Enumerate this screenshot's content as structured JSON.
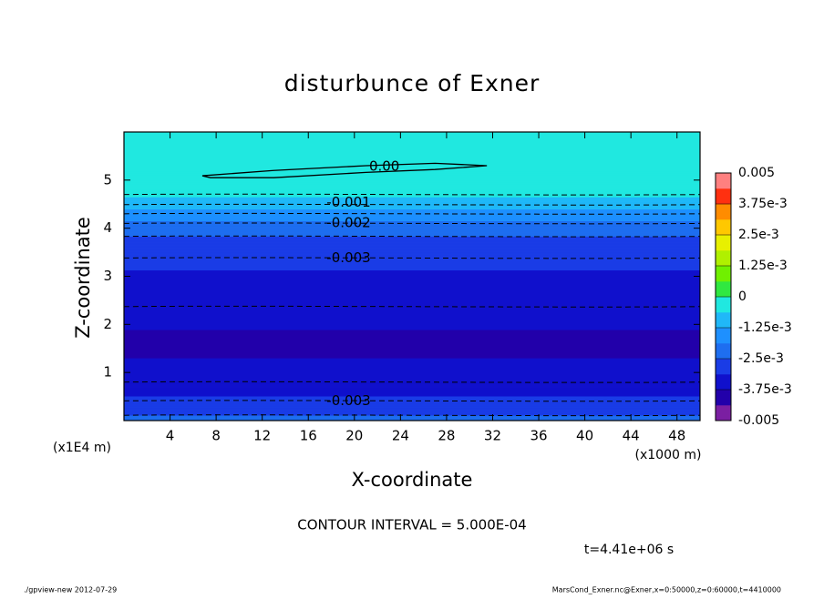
{
  "chart_data": {
    "type": "contour",
    "title": "disturbunce of Exner",
    "x_label": "X-coordinate",
    "y_label": "Z-coordinate",
    "x_unit": "(x1000 m)",
    "y_unit": "(x1E4 m)",
    "xlim": [
      0,
      50
    ],
    "ylim": [
      0,
      6
    ],
    "xticks": [
      4,
      8,
      12,
      16,
      20,
      24,
      28,
      32,
      36,
      40,
      44,
      48
    ],
    "yticks": [
      1,
      2,
      3,
      4,
      5
    ],
    "profile": {
      "z": [
        0,
        0.11,
        0.41,
        0.8,
        1.6,
        2.37,
        3.38,
        3.83,
        4.1,
        4.3,
        4.49,
        4.7,
        5.2,
        6.0
      ],
      "values": [
        -0.0023,
        -0.0025,
        -0.003,
        -0.0035,
        -0.0039,
        -0.0035,
        -0.003,
        -0.0025,
        -0.002,
        -0.0015,
        -0.001,
        -0.0005,
        -0.0002,
        -0.0002
      ]
    },
    "zero_contour": {
      "x": [
        6.8,
        13,
        21,
        27,
        31.5,
        27,
        21,
        13,
        7.5,
        6.8
      ],
      "z": [
        5.09,
        5.2,
        5.3,
        5.35,
        5.3,
        5.22,
        5.16,
        5.05,
        5.05,
        5.09
      ]
    },
    "contour_interval": {
      "value": 0.0005,
      "label": "CONTOUR INTERVAL = 5.000E-04"
    },
    "contour_labels": [
      {
        "label": "0.00",
        "x": 22.6,
        "z": 5.28
      },
      {
        "label": "-0.001",
        "x": 19.5,
        "z": 4.53
      },
      {
        "label": "-0.002",
        "x": 19.5,
        "z": 4.11
      },
      {
        "label": "-0.003",
        "x": 19.5,
        "z": 3.38
      },
      {
        "label": "-0.003",
        "x": 19.5,
        "z": 0.41
      }
    ],
    "colorbar": {
      "clim": [
        -0.005,
        0.005
      ],
      "colors": [
        "#7b1fa2",
        "#2200aa",
        "#1010cc",
        "#1a3ce6",
        "#1e6ef0",
        "#1e90ff",
        "#20b8f8",
        "#20e8e0",
        "#30e840",
        "#70f000",
        "#b0f000",
        "#e8f000",
        "#ffc800",
        "#ff8c00",
        "#ff3010",
        "#ff8080"
      ],
      "ticks": [
        -0.005,
        {
          "value": -0.00375,
          "label": "-3.75e-3"
        },
        {
          "value": -0.0025,
          "label": "-2.5e-3"
        },
        {
          "value": -0.00125,
          "label": "-1.25e-3"
        },
        0,
        {
          "value": 0.00125,
          "label": "1.25e-3"
        },
        {
          "value": 0.0025,
          "label": "2.5e-3"
        },
        {
          "value": 0.00375,
          "label": "3.75e-3"
        },
        0.005
      ]
    },
    "time_label": "t=4.41e+06 s",
    "footer_left": "./gpview-new  2012-07-29",
    "footer_right": "MarsCond_Exner.nc@Exner,x=0:50000,z=0:60000,t=4410000"
  }
}
